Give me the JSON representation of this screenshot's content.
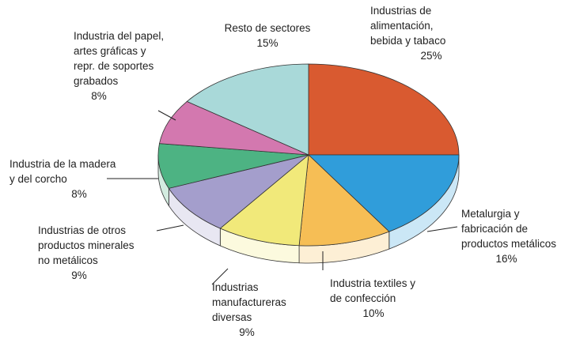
{
  "chart_data": {
    "type": "pie",
    "categories": [
      "Industrias de\nalimentación,\nbebida y tabaco",
      "Metalurgia y\nfabricación de\nproductos metálicos",
      "Industria textiles y\nde confección",
      "Industrias\nmanufactureras\ndiversas",
      "Industrias de otros\nproductos minerales\nno metálicos",
      "Industria de la madera\ny del corcho",
      "Industria del papel,\nartes gráficas y\nrepr. de soportes\ngrabados",
      "Resto de sectores"
    ],
    "values": [
      25,
      16,
      10,
      9,
      9,
      8,
      8,
      15
    ],
    "value_labels": [
      "25%",
      "16%",
      "10%",
      "9%",
      "9%",
      "8%",
      "8%",
      "15%"
    ],
    "colors": [
      "#d95a30",
      "#309dda",
      "#f6be55",
      "#f1e97a",
      "#a49ecc",
      "#4db383",
      "#d378af",
      "#a9d9d9"
    ]
  }
}
